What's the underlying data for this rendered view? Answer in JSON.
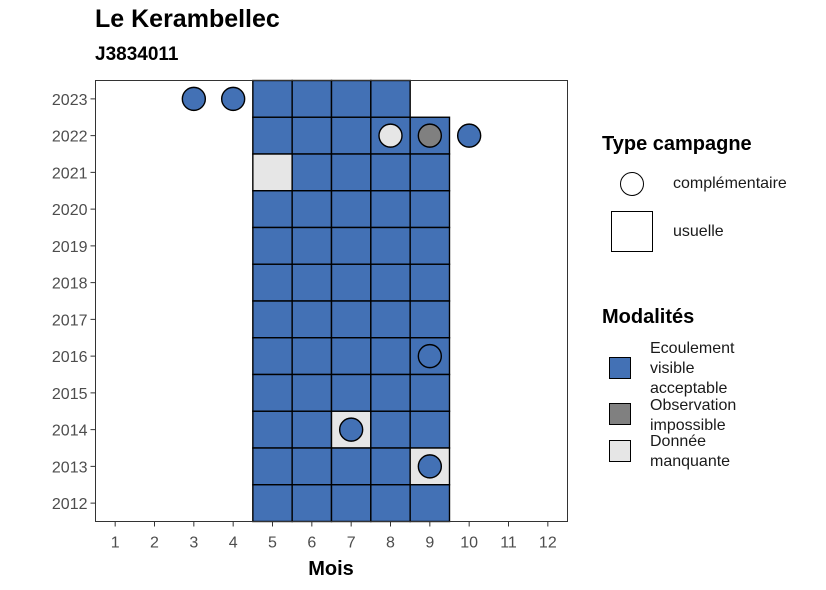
{
  "chart_data": {
    "type": "heatmap",
    "title": "Le Kerambellec",
    "subtitle": "J3834011",
    "xlabel": "Mois",
    "ylabel": "",
    "x_ticks": [
      1,
      2,
      3,
      4,
      5,
      6,
      7,
      8,
      9,
      10,
      11,
      12
    ],
    "y_ticks": [
      2023,
      2022,
      2021,
      2020,
      2019,
      2018,
      2017,
      2016,
      2015,
      2014,
      2013,
      2012
    ],
    "xlim": [
      0.5,
      12.5
    ],
    "ylim": [
      2011.5,
      2023.5
    ],
    "grid": false,
    "legend_placement": "right",
    "colors": {
      "Ecoulement visible acceptable": "#4371b5",
      "Observation impossible": "#808080",
      "Donnée manquante": "#e6e6e6"
    },
    "usual_campaigns": [
      {
        "year": 2023,
        "month": 5,
        "modality": "Ecoulement visible acceptable"
      },
      {
        "year": 2023,
        "month": 6,
        "modality": "Ecoulement visible acceptable"
      },
      {
        "year": 2023,
        "month": 7,
        "modality": "Ecoulement visible acceptable"
      },
      {
        "year": 2023,
        "month": 8,
        "modality": "Ecoulement visible acceptable"
      },
      {
        "year": 2022,
        "month": 5,
        "modality": "Ecoulement visible acceptable"
      },
      {
        "year": 2022,
        "month": 6,
        "modality": "Ecoulement visible acceptable"
      },
      {
        "year": 2022,
        "month": 7,
        "modality": "Ecoulement visible acceptable"
      },
      {
        "year": 2022,
        "month": 8,
        "modality": "Ecoulement visible acceptable"
      },
      {
        "year": 2022,
        "month": 9,
        "modality": "Ecoulement visible acceptable"
      },
      {
        "year": 2021,
        "month": 5,
        "modality": "Donnée manquante"
      },
      {
        "year": 2021,
        "month": 6,
        "modality": "Ecoulement visible acceptable"
      },
      {
        "year": 2021,
        "month": 7,
        "modality": "Ecoulement visible acceptable"
      },
      {
        "year": 2021,
        "month": 8,
        "modality": "Ecoulement visible acceptable"
      },
      {
        "year": 2021,
        "month": 9,
        "modality": "Ecoulement visible acceptable"
      },
      {
        "year": 2020,
        "month": 5,
        "modality": "Ecoulement visible acceptable"
      },
      {
        "year": 2020,
        "month": 6,
        "modality": "Ecoulement visible acceptable"
      },
      {
        "year": 2020,
        "month": 7,
        "modality": "Ecoulement visible acceptable"
      },
      {
        "year": 2020,
        "month": 8,
        "modality": "Ecoulement visible acceptable"
      },
      {
        "year": 2020,
        "month": 9,
        "modality": "Ecoulement visible acceptable"
      },
      {
        "year": 2019,
        "month": 5,
        "modality": "Ecoulement visible acceptable"
      },
      {
        "year": 2019,
        "month": 6,
        "modality": "Ecoulement visible acceptable"
      },
      {
        "year": 2019,
        "month": 7,
        "modality": "Ecoulement visible acceptable"
      },
      {
        "year": 2019,
        "month": 8,
        "modality": "Ecoulement visible acceptable"
      },
      {
        "year": 2019,
        "month": 9,
        "modality": "Ecoulement visible acceptable"
      },
      {
        "year": 2018,
        "month": 5,
        "modality": "Ecoulement visible acceptable"
      },
      {
        "year": 2018,
        "month": 6,
        "modality": "Ecoulement visible acceptable"
      },
      {
        "year": 2018,
        "month": 7,
        "modality": "Ecoulement visible acceptable"
      },
      {
        "year": 2018,
        "month": 8,
        "modality": "Ecoulement visible acceptable"
      },
      {
        "year": 2018,
        "month": 9,
        "modality": "Ecoulement visible acceptable"
      },
      {
        "year": 2017,
        "month": 5,
        "modality": "Ecoulement visible acceptable"
      },
      {
        "year": 2017,
        "month": 6,
        "modality": "Ecoulement visible acceptable"
      },
      {
        "year": 2017,
        "month": 7,
        "modality": "Ecoulement visible acceptable"
      },
      {
        "year": 2017,
        "month": 8,
        "modality": "Ecoulement visible acceptable"
      },
      {
        "year": 2017,
        "month": 9,
        "modality": "Ecoulement visible acceptable"
      },
      {
        "year": 2016,
        "month": 5,
        "modality": "Ecoulement visible acceptable"
      },
      {
        "year": 2016,
        "month": 6,
        "modality": "Ecoulement visible acceptable"
      },
      {
        "year": 2016,
        "month": 7,
        "modality": "Ecoulement visible acceptable"
      },
      {
        "year": 2016,
        "month": 8,
        "modality": "Ecoulement visible acceptable"
      },
      {
        "year": 2016,
        "month": 9,
        "modality": "Ecoulement visible acceptable"
      },
      {
        "year": 2015,
        "month": 5,
        "modality": "Ecoulement visible acceptable"
      },
      {
        "year": 2015,
        "month": 6,
        "modality": "Ecoulement visible acceptable"
      },
      {
        "year": 2015,
        "month": 7,
        "modality": "Ecoulement visible acceptable"
      },
      {
        "year": 2015,
        "month": 8,
        "modality": "Ecoulement visible acceptable"
      },
      {
        "year": 2015,
        "month": 9,
        "modality": "Ecoulement visible acceptable"
      },
      {
        "year": 2014,
        "month": 5,
        "modality": "Ecoulement visible acceptable"
      },
      {
        "year": 2014,
        "month": 6,
        "modality": "Ecoulement visible acceptable"
      },
      {
        "year": 2014,
        "month": 7,
        "modality": "Donnée manquante"
      },
      {
        "year": 2014,
        "month": 8,
        "modality": "Ecoulement visible acceptable"
      },
      {
        "year": 2014,
        "month": 9,
        "modality": "Ecoulement visible acceptable"
      },
      {
        "year": 2013,
        "month": 5,
        "modality": "Ecoulement visible acceptable"
      },
      {
        "year": 2013,
        "month": 6,
        "modality": "Ecoulement visible acceptable"
      },
      {
        "year": 2013,
        "month": 7,
        "modality": "Ecoulement visible acceptable"
      },
      {
        "year": 2013,
        "month": 8,
        "modality": "Ecoulement visible acceptable"
      },
      {
        "year": 2013,
        "month": 9,
        "modality": "Donnée manquante"
      },
      {
        "year": 2012,
        "month": 5,
        "modality": "Ecoulement visible acceptable"
      },
      {
        "year": 2012,
        "month": 6,
        "modality": "Ecoulement visible acceptable"
      },
      {
        "year": 2012,
        "month": 7,
        "modality": "Ecoulement visible acceptable"
      },
      {
        "year": 2012,
        "month": 8,
        "modality": "Ecoulement visible acceptable"
      },
      {
        "year": 2012,
        "month": 9,
        "modality": "Ecoulement visible acceptable"
      }
    ],
    "complementary_campaigns": [
      {
        "year": 2023,
        "month": 3,
        "modality": "Ecoulement visible acceptable"
      },
      {
        "year": 2023,
        "month": 4,
        "modality": "Ecoulement visible acceptable"
      },
      {
        "year": 2022,
        "month": 8,
        "modality": "Donnée manquante"
      },
      {
        "year": 2022,
        "month": 9,
        "modality": "Observation impossible"
      },
      {
        "year": 2022,
        "month": 10,
        "modality": "Ecoulement visible acceptable"
      },
      {
        "year": 2016,
        "month": 9,
        "modality": "Ecoulement visible acceptable"
      },
      {
        "year": 2014,
        "month": 7,
        "modality": "Ecoulement visible acceptable"
      },
      {
        "year": 2013,
        "month": 9,
        "modality": "Ecoulement visible acceptable"
      }
    ]
  },
  "legend": {
    "type_title": "Type campagne",
    "type_items": [
      {
        "label": "complémentaire",
        "shape": "circle"
      },
      {
        "label": "usuelle",
        "shape": "square"
      }
    ],
    "modality_title": "Modalités",
    "modality_items": [
      {
        "label": "Ecoulement visible acceptable",
        "color": "#4371b5"
      },
      {
        "label": "Observation impossible",
        "color": "#808080"
      },
      {
        "label": "Donnée manquante",
        "color": "#e6e6e6"
      }
    ]
  }
}
